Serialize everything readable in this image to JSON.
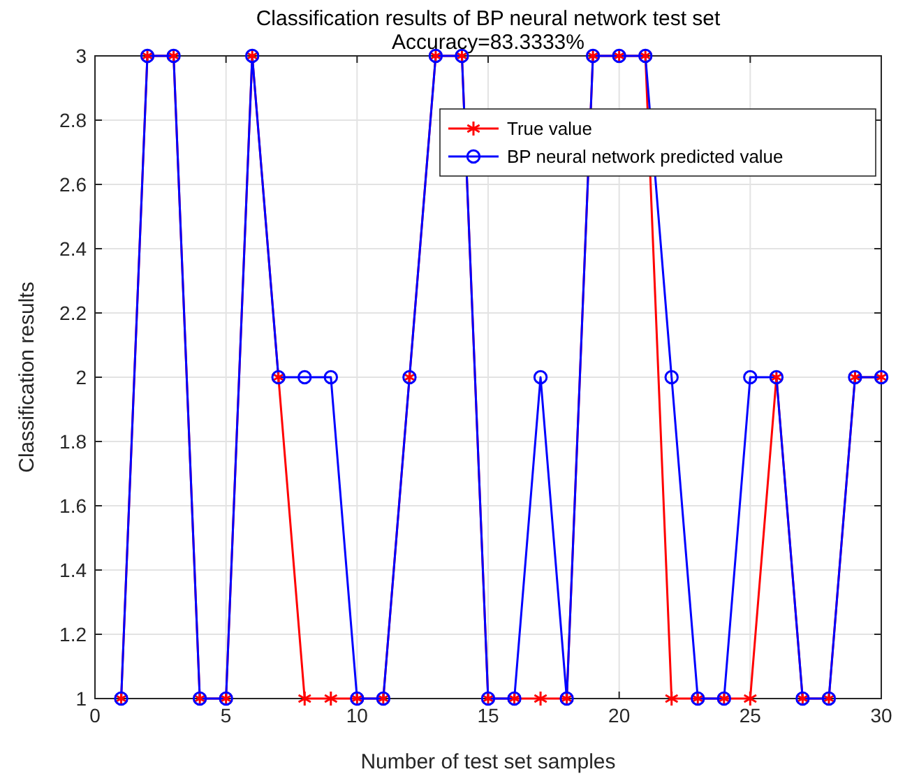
{
  "chart_data": {
    "type": "line",
    "title": "Classification results of BP neural network test set",
    "subtitle": "Accuracy=83.3333%",
    "xlabel": "Number of test set samples",
    "ylabel": "Classification results",
    "x": [
      1,
      2,
      3,
      4,
      5,
      6,
      7,
      8,
      9,
      10,
      11,
      12,
      13,
      14,
      15,
      16,
      17,
      18,
      19,
      20,
      21,
      22,
      23,
      24,
      25,
      26,
      27,
      28,
      29,
      30
    ],
    "series": [
      {
        "name": "True value",
        "color": "#ff0000",
        "marker": "cross",
        "values": [
          1,
          3,
          3,
          1,
          1,
          3,
          2,
          1,
          1,
          1,
          1,
          2,
          3,
          3,
          1,
          1,
          1,
          1,
          3,
          3,
          3,
          1,
          1,
          1,
          1,
          2,
          1,
          1,
          2,
          2
        ]
      },
      {
        "name": "BP neural network predicted value",
        "color": "#0000ff",
        "marker": "circle",
        "values": [
          1,
          3,
          3,
          1,
          1,
          3,
          2,
          2,
          2,
          1,
          1,
          2,
          3,
          3,
          1,
          1,
          2,
          1,
          3,
          3,
          3,
          2,
          1,
          1,
          2,
          2,
          1,
          1,
          2,
          2
        ]
      }
    ],
    "xlim": [
      0,
      30
    ],
    "xticks": [
      0,
      5,
      10,
      15,
      20,
      25,
      30
    ],
    "ylim": [
      1,
      3
    ],
    "yticks": [
      1,
      1.2,
      1.4,
      1.6,
      1.8,
      2,
      2.2,
      2.4,
      2.6,
      2.8,
      3
    ],
    "grid": true,
    "legend": "top right",
    "line_style": "solid"
  }
}
